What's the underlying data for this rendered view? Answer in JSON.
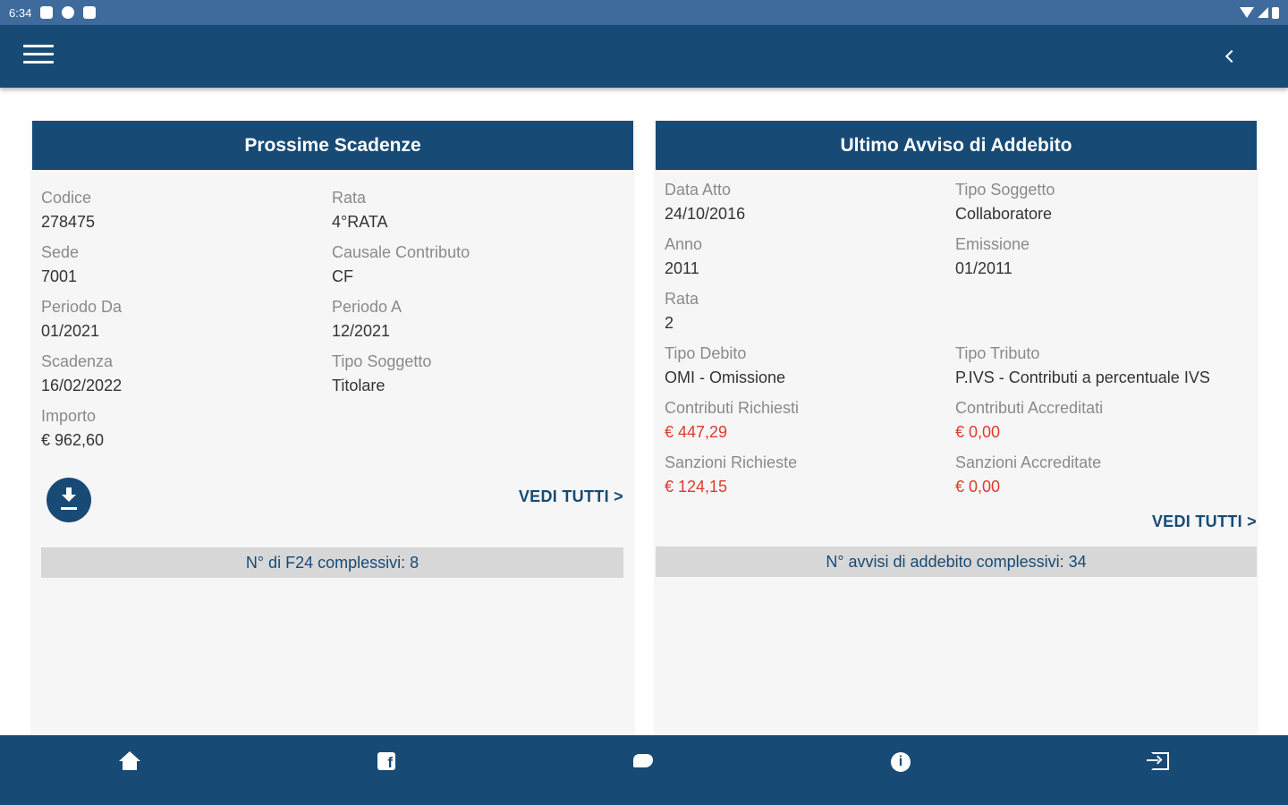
{
  "status_bar": {
    "time": "6:34"
  },
  "left_card": {
    "title": "Prossime Scadenze",
    "fields": [
      {
        "label": "Codice",
        "value": "278475"
      },
      {
        "label": "Rata",
        "value": "4°RATA"
      },
      {
        "label": "Sede",
        "value": "7001"
      },
      {
        "label": "Causale Contributo",
        "value": "CF"
      },
      {
        "label": "Periodo Da",
        "value": "01/2021"
      },
      {
        "label": "Periodo A",
        "value": "12/2021"
      },
      {
        "label": "Scadenza",
        "value": "16/02/2022"
      },
      {
        "label": "Tipo Soggetto",
        "value": "Titolare"
      },
      {
        "label": "Importo",
        "value": "€ 962,60"
      }
    ],
    "vedi_tutti": "VEDI TUTTI >",
    "summary": "N° di F24 complessivi: 8"
  },
  "right_card": {
    "title": "Ultimo Avviso di Addebito",
    "fields": [
      {
        "label": "Data Atto",
        "value": "24/10/2016"
      },
      {
        "label": "Tipo Soggetto",
        "value": "Collaboratore"
      },
      {
        "label": "Anno",
        "value": "2011"
      },
      {
        "label": "Emissione",
        "value": "01/2011"
      },
      {
        "label": "Rata",
        "value": "2"
      },
      {
        "label": "Tipo Debito",
        "value": "OMI - Omissione"
      },
      {
        "label": "Tipo Tributo",
        "value": "P.IVS - Contributi a percentuale IVS"
      },
      {
        "label": "Contributi Richiesti",
        "value": "€ 447,29"
      },
      {
        "label": "Contributi Accreditati",
        "value": "€ 0,00"
      },
      {
        "label": "Sanzioni Richieste",
        "value": "€ 124,15"
      },
      {
        "label": "Sanzioni Accreditate",
        "value": "€ 0,00"
      }
    ],
    "vedi_tutti": "VEDI TUTTI >",
    "summary": "N° avvisi di addebito complessivi: 34"
  },
  "bottom_nav": {
    "icons": [
      "home-icon",
      "facebook-icon",
      "twitter-icon",
      "info-icon",
      "logout-icon"
    ]
  },
  "colors": {
    "primary": "#174b76",
    "status_bar": "#3e6a9c",
    "negative": "#e03a2e",
    "card_bg": "#f6f6f6",
    "summary_bg": "#d7d7d7"
  }
}
